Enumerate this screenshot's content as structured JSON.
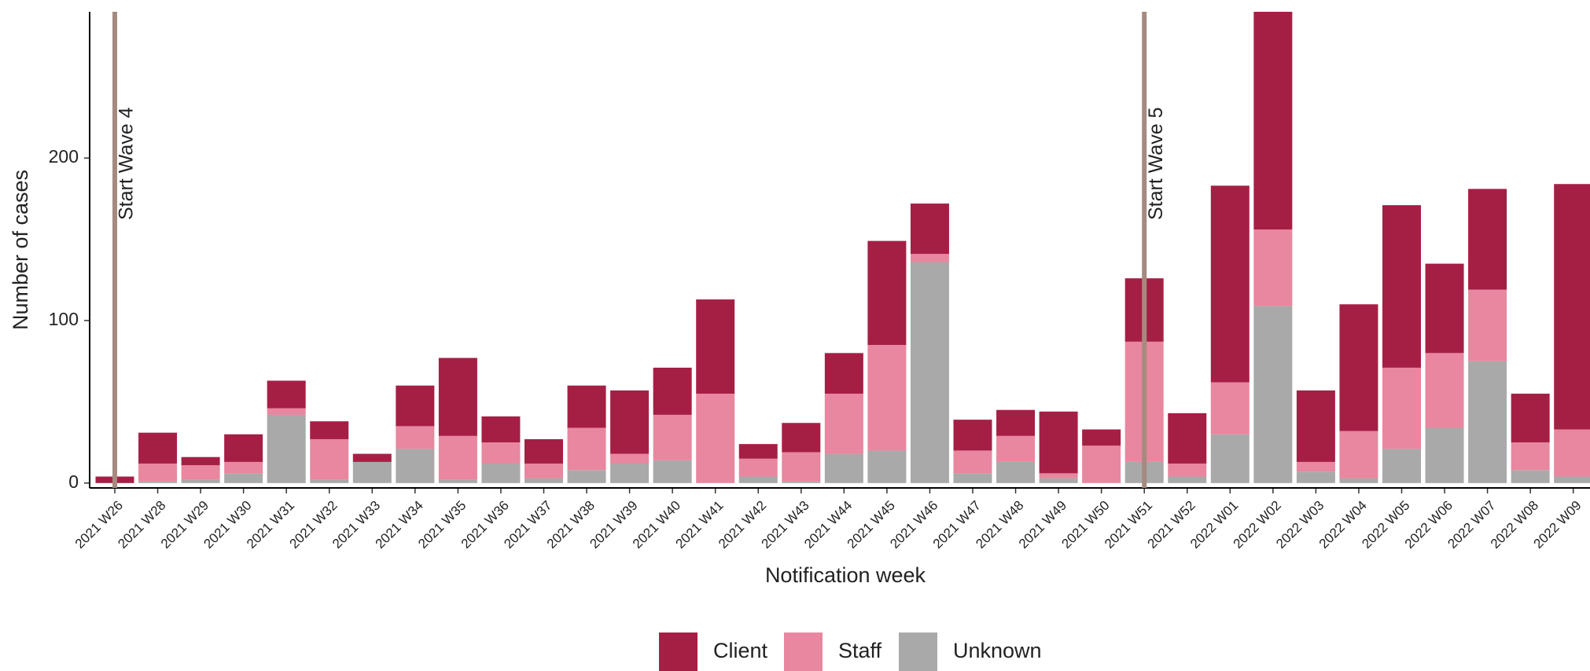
{
  "chart_data": {
    "type": "stacked_bar",
    "x_label": "Notification week",
    "y_label": "Number of cases",
    "categories": [
      "2021 W26",
      "2021 W28",
      "2021 W29",
      "2021 W30",
      "2021 W31",
      "2021 W32",
      "2021 W33",
      "2021 W34",
      "2021 W35",
      "2021 W36",
      "2021 W37",
      "2021 W38",
      "2021 W39",
      "2021 W40",
      "2021 W41",
      "2021 W42",
      "2021 W43",
      "2021 W44",
      "2021 W45",
      "2021 W46",
      "2021 W47",
      "2021 W48",
      "2021 W49",
      "2021 W50",
      "2021 W51",
      "2021 W52",
      "2022 W01",
      "2022 W02",
      "2022 W03",
      "2022 W04",
      "2022 W05",
      "2022 W06",
      "2022 W07",
      "2022 W08",
      "2022 W09"
    ],
    "series": [
      {
        "name": "Client",
        "color": "#a51f45",
        "values": [
          4,
          19,
          5,
          17,
          17,
          11,
          5,
          25,
          48,
          16,
          15,
          26,
          39,
          29,
          58,
          9,
          18,
          25,
          64,
          31,
          19,
          16,
          38,
          10,
          39,
          31,
          121,
          134,
          44,
          78,
          100,
          55,
          62,
          30,
          151
        ]
      },
      {
        "name": "Staff",
        "color": "#e8879f",
        "values": [
          0,
          11,
          9,
          7,
          4,
          25,
          0,
          14,
          27,
          13,
          9,
          26,
          6,
          28,
          55,
          11,
          18,
          37,
          65,
          5,
          14,
          16,
          3,
          23,
          74,
          8,
          32,
          47,
          6,
          29,
          50,
          46,
          44,
          17,
          29
        ]
      },
      {
        "name": "Unknown",
        "color": "#a9a9a9",
        "values": [
          0,
          1,
          2,
          6,
          42,
          2,
          13,
          21,
          2,
          12,
          3,
          8,
          12,
          14,
          0,
          4,
          1,
          18,
          20,
          136,
          6,
          13,
          3,
          0,
          13,
          4,
          30,
          109,
          7,
          3,
          21,
          34,
          75,
          8,
          4
        ]
      }
    ],
    "ylim": [
      -3,
      290
    ],
    "yticks": [
      0,
      100,
      200
    ],
    "grid": false,
    "legend": "bottom",
    "annotations": [
      {
        "text": "Start Wave 4",
        "category": "2021 W26",
        "color": "#a68a80"
      },
      {
        "text": "Start Wave 5",
        "category": "2021 W51",
        "color": "#a68a80"
      }
    ]
  }
}
